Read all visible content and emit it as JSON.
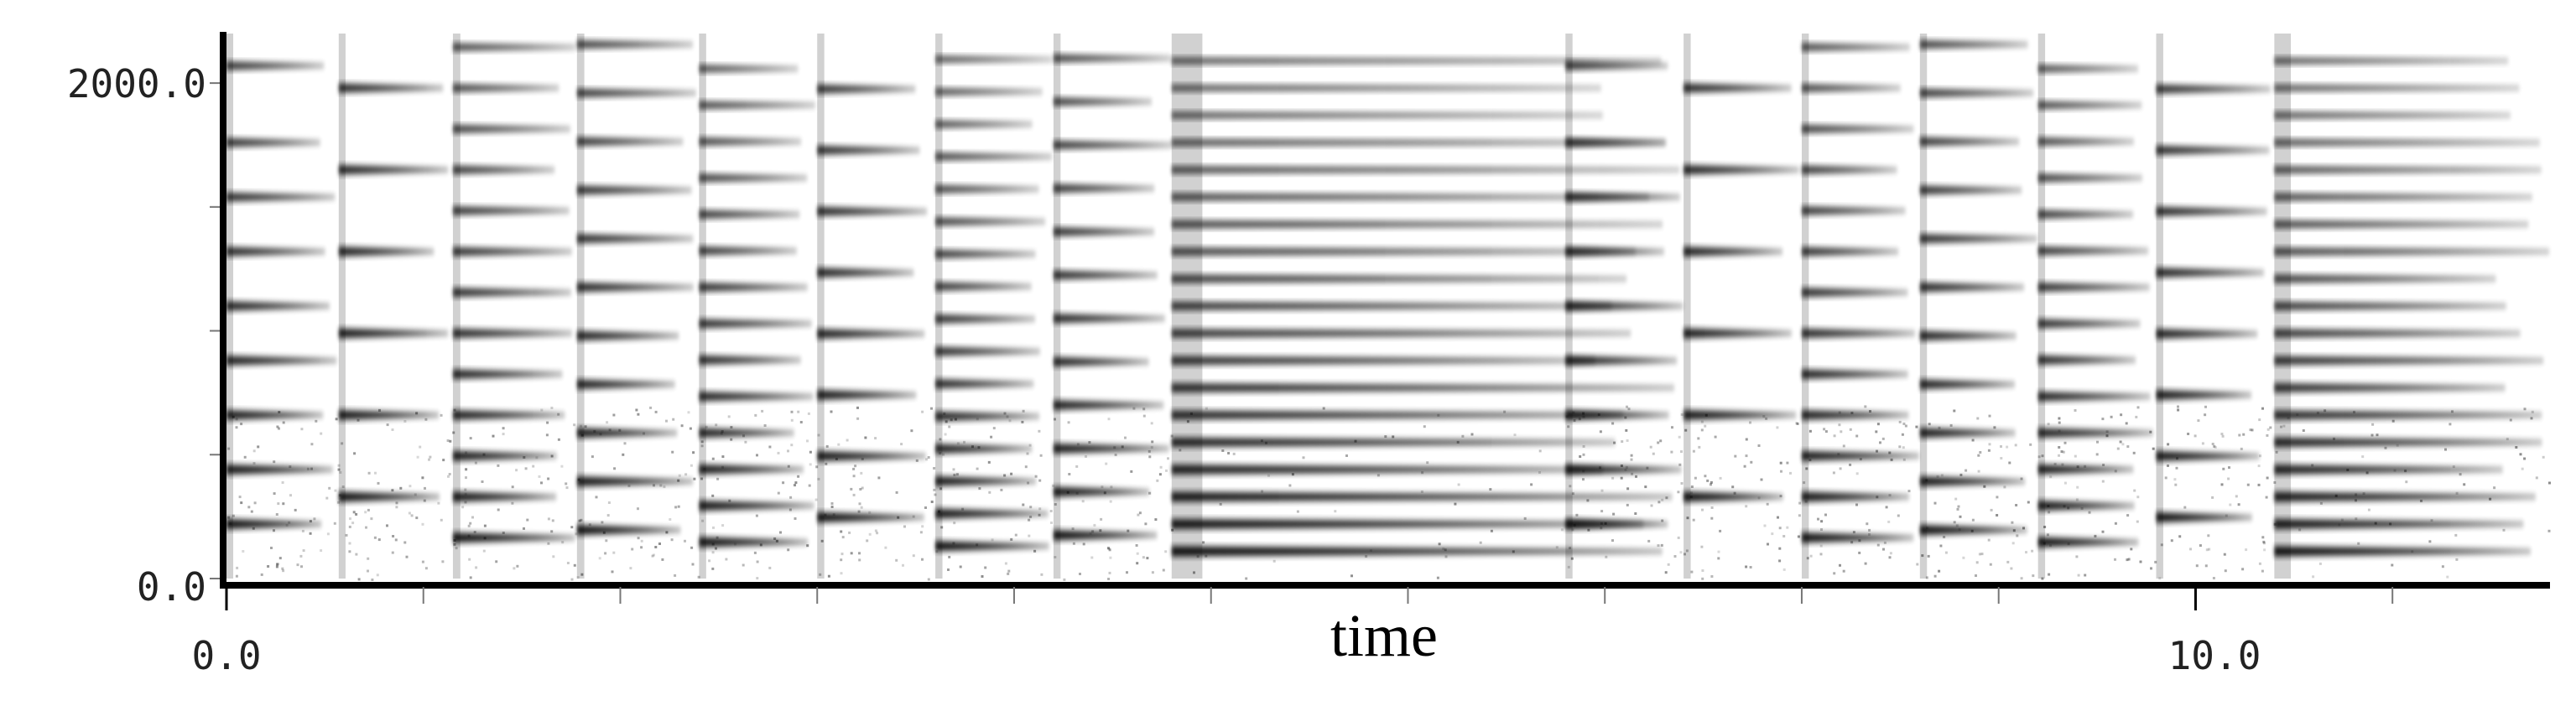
{
  "chart_data": {
    "type": "heatmap",
    "title": "",
    "xlabel": "time",
    "ylabel": "",
    "xlim": [
      0,
      11.8
    ],
    "ylim": [
      0,
      2200
    ],
    "x_tick_labels": [
      {
        "value": 0,
        "label": "0.0"
      },
      {
        "value": 10,
        "label": "10.0"
      }
    ],
    "y_tick_labels": [
      {
        "value": 0,
        "label": "0.0"
      },
      {
        "value": 2000,
        "label": "2000.0"
      }
    ],
    "x_minor_ticks": [
      1,
      2,
      3,
      4,
      5,
      6,
      7,
      8,
      9,
      11
    ],
    "y_minor_ticks": [
      500,
      1000,
      1500
    ],
    "grid": false,
    "legend": "none",
    "colormap": "grayscale (white = low energy, black = high energy)",
    "ink_color": "#000000",
    "background_color": "#ffffff",
    "segments": [
      {
        "start": 0.0,
        "end": 0.57,
        "decay": 0.4,
        "freqs": [
          220,
          440,
          660,
          880,
          1100,
          1320,
          1540,
          1760,
          2070
        ]
      },
      {
        "start": 0.57,
        "end": 1.15,
        "decay": 0.35,
        "freqs": [
          330,
          660,
          990,
          1320,
          1650,
          1980
        ]
      },
      {
        "start": 1.15,
        "end": 1.78,
        "decay": 0.3,
        "freqs": [
          165,
          330,
          495,
          660,
          825,
          990,
          1155,
          1320,
          1485,
          1650,
          1815,
          1980,
          2145
        ]
      },
      {
        "start": 1.78,
        "end": 2.4,
        "decay": 0.3,
        "freqs": [
          196,
          392,
          588,
          784,
          980,
          1176,
          1372,
          1568,
          1764,
          1960,
          2156
        ]
      },
      {
        "start": 2.4,
        "end": 3.0,
        "decay": 0.3,
        "freqs": [
          147,
          294,
          441,
          588,
          735,
          882,
          1029,
          1176,
          1323,
          1470,
          1617,
          1764,
          1911,
          2058
        ]
      },
      {
        "start": 3.0,
        "end": 3.6,
        "decay": 0.3,
        "freqs": [
          247,
          494,
          741,
          988,
          1235,
          1482,
          1729,
          1976
        ]
      },
      {
        "start": 3.6,
        "end": 4.2,
        "decay": 0.3,
        "freqs": [
          131,
          262,
          393,
          524,
          655,
          786,
          917,
          1048,
          1179,
          1310,
          1441,
          1572,
          1703,
          1834,
          1965,
          2096
        ]
      },
      {
        "start": 4.2,
        "end": 4.8,
        "decay": 0.3,
        "freqs": [
          175,
          350,
          525,
          700,
          875,
          1050,
          1225,
          1400,
          1575,
          1750,
          1925,
          2100
        ]
      },
      {
        "start": 4.8,
        "end": 7.4,
        "decay": 1.2,
        "freqs": [
          110,
          220,
          330,
          440,
          550,
          660,
          770,
          880,
          990,
          1100,
          1210,
          1320,
          1430,
          1540,
          1650,
          1760,
          1870,
          1980,
          2090
        ]
      },
      {
        "start": 6.8,
        "end": 7.4,
        "decay": 0.4,
        "freqs": [
          220,
          440,
          660,
          880,
          1100,
          1320,
          1540,
          1760,
          2070
        ]
      },
      {
        "start": 7.4,
        "end": 8.0,
        "decay": 0.35,
        "freqs": [
          330,
          660,
          990,
          1320,
          1650,
          1980
        ]
      },
      {
        "start": 8.0,
        "end": 8.6,
        "decay": 0.3,
        "freqs": [
          165,
          330,
          495,
          660,
          825,
          990,
          1155,
          1320,
          1485,
          1650,
          1815,
          1980,
          2145
        ]
      },
      {
        "start": 8.6,
        "end": 9.2,
        "decay": 0.3,
        "freqs": [
          196,
          392,
          588,
          784,
          980,
          1176,
          1372,
          1568,
          1764,
          1960,
          2156
        ]
      },
      {
        "start": 9.2,
        "end": 9.8,
        "decay": 0.3,
        "freqs": [
          147,
          294,
          441,
          588,
          735,
          882,
          1029,
          1176,
          1323,
          1470,
          1617,
          1764,
          1911,
          2058
        ]
      },
      {
        "start": 9.8,
        "end": 10.4,
        "decay": 0.3,
        "freqs": [
          247,
          494,
          741,
          988,
          1235,
          1482,
          1729,
          1976
        ]
      },
      {
        "start": 10.4,
        "end": 11.8,
        "decay": 1.2,
        "freqs": [
          110,
          220,
          330,
          440,
          550,
          660,
          770,
          880,
          990,
          1100,
          1210,
          1320,
          1430,
          1540,
          1650,
          1760,
          1870,
          1980,
          2090
        ]
      }
    ]
  }
}
